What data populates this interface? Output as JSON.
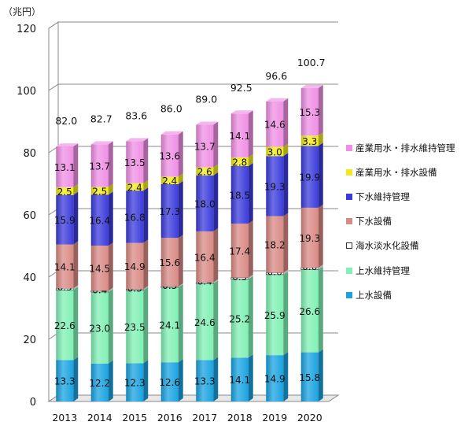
{
  "unit_label": "（兆円）",
  "chart_data": {
    "type": "bar",
    "stacked": true,
    "view": "3d",
    "categories": [
      "2013",
      "2014",
      "2015",
      "2016",
      "2017",
      "2018",
      "2019",
      "2020"
    ],
    "ylim": [
      0,
      120
    ],
    "yticks": [
      0,
      20,
      40,
      60,
      80,
      100,
      120
    ],
    "grid": true,
    "legend_position": "right",
    "totals": [
      "82.0",
      "82.7",
      "83.6",
      "86.0",
      "89.0",
      "92.5",
      "96.6",
      "100.7"
    ],
    "series": [
      {
        "name": "上水設備",
        "color": "#1aa3e0",
        "values": [
          13.3,
          12.2,
          12.3,
          12.6,
          13.3,
          14.1,
          14.9,
          15.8
        ]
      },
      {
        "name": "上水維持管理",
        "color": "#80f0b4",
        "values": [
          22.6,
          23.0,
          23.5,
          24.1,
          24.6,
          25.2,
          25.9,
          26.6
        ]
      },
      {
        "name": "海水淡水化設備",
        "color": "#ffffff",
        "values": [
          0.5,
          0.4,
          0.3,
          0.3,
          0.4,
          0.5,
          0.6,
          0.6
        ]
      },
      {
        "name": "下水設備",
        "color": "#d98a85",
        "values": [
          14.1,
          14.5,
          14.9,
          15.6,
          16.4,
          17.4,
          18.2,
          19.3
        ]
      },
      {
        "name": "下水維持管理",
        "color": "#3c3cdc",
        "values": [
          15.9,
          16.4,
          16.8,
          17.3,
          18.0,
          18.5,
          19.3,
          19.9
        ]
      },
      {
        "name": "産業用水・排水設備",
        "color": "#f2ea1c",
        "values": [
          2.5,
          2.5,
          2.4,
          2.4,
          2.6,
          2.8,
          3.0,
          3.3
        ]
      },
      {
        "name": "産業用水・排水維持管理",
        "color": "#ef8fe4",
        "values": [
          13.1,
          13.7,
          13.5,
          13.6,
          13.7,
          14.1,
          14.6,
          15.3
        ]
      }
    ],
    "legend_order": [
      "産業用水・排水維持管理",
      "産業用水・排水設備",
      "下水維持管理",
      "下水設備",
      "海水淡水化設備",
      "上水維持管理",
      "上水設備"
    ]
  }
}
